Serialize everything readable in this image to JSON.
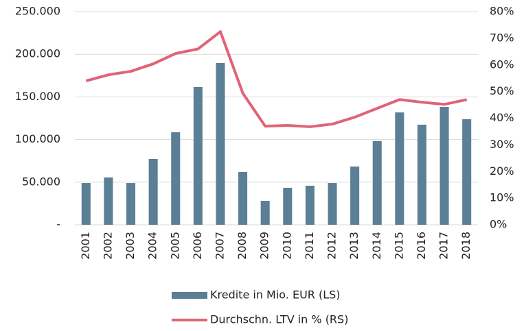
{
  "chart_data": {
    "type": "bar-line",
    "categories": [
      "2001",
      "2002",
      "2003",
      "2004",
      "2005",
      "2006",
      "2007",
      "2008",
      "2009",
      "2010",
      "2011",
      "2012",
      "2013",
      "2014",
      "2015",
      "2016",
      "2017",
      "2018"
    ],
    "series": [
      {
        "name": "Kredite in Mio. EUR (LS)",
        "type": "bar",
        "color": "#5b7f95",
        "values": [
          49000,
          55500,
          49000,
          77200,
          108500,
          161600,
          189700,
          61900,
          28100,
          43400,
          45800,
          49000,
          68300,
          98100,
          131800,
          117400,
          138300,
          123800
        ]
      },
      {
        "name": "Durchschn. LTV in % (RS)",
        "type": "line",
        "axis": "y2",
        "color": "#e06377",
        "values": [
          54,
          56.3,
          57.6,
          60.4,
          64.3,
          66,
          72.5,
          49.4,
          37,
          37.3,
          36.8,
          37.8,
          40.4,
          43.7,
          47,
          46,
          45.2,
          47
        ]
      }
    ],
    "ylim": [
      0,
      250000
    ],
    "yticks": [
      {
        "value": 0,
        "label": "-"
      },
      {
        "value": 50000,
        "label": "50.000"
      },
      {
        "value": 100000,
        "label": "100.000"
      },
      {
        "value": 150000,
        "label": "150.000"
      },
      {
        "value": 200000,
        "label": "200.000"
      },
      {
        "value": 250000,
        "label": "250.000"
      }
    ],
    "y2lim": [
      0,
      80
    ],
    "y2ticks": [
      {
        "value": 0,
        "label": "0%"
      },
      {
        "value": 10,
        "label": "10%"
      },
      {
        "value": 20,
        "label": "20%"
      },
      {
        "value": 30,
        "label": "30%"
      },
      {
        "value": 40,
        "label": "40%"
      },
      {
        "value": 50,
        "label": "50%"
      },
      {
        "value": 60,
        "label": "60%"
      },
      {
        "value": 70,
        "label": "70%"
      },
      {
        "value": 80,
        "label": "80%"
      }
    ],
    "grid": true,
    "legend": "bottom"
  }
}
